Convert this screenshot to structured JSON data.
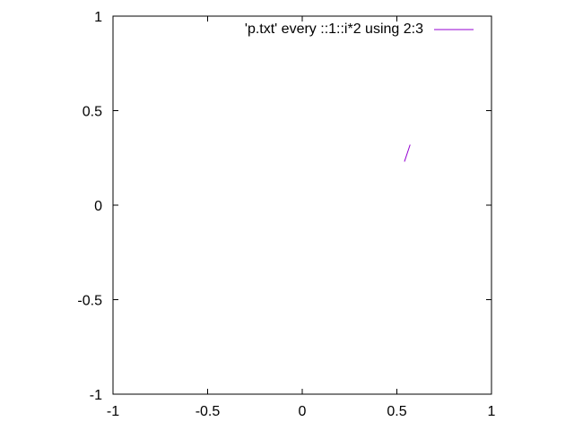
{
  "chart_data": {
    "type": "line",
    "title": "",
    "xlabel": "",
    "ylabel": "",
    "xlim": [
      -1,
      1
    ],
    "ylim": [
      -1,
      1
    ],
    "x_ticks": [
      "-1",
      "-0.5",
      "0",
      "0.5",
      "1"
    ],
    "y_ticks": [
      "1",
      "0.5",
      "0",
      "-0.5",
      "-1"
    ],
    "grid": false,
    "legend": "top-right",
    "series": [
      {
        "name": "'p.txt' every ::1::i*2 using 2:3",
        "color": "#9400d3",
        "x": [
          0.54,
          0.57
        ],
        "y": [
          0.23,
          0.32
        ]
      }
    ]
  }
}
